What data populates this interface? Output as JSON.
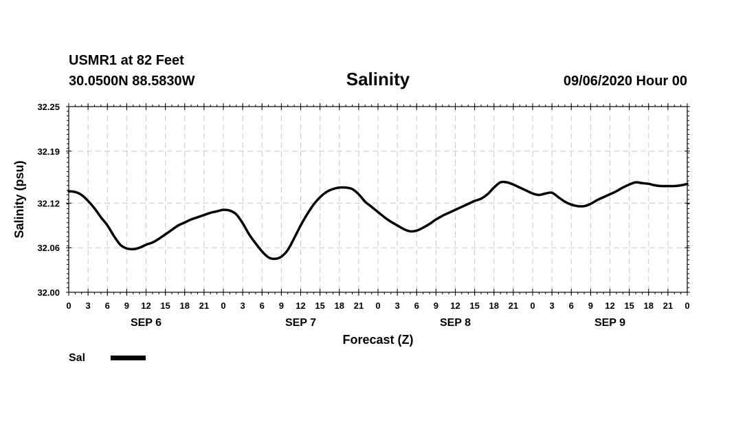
{
  "header": {
    "station": "USMR1 at 82 Feet",
    "coords": "30.0500N 88.5830W",
    "run": "09/06/2020 Hour 00"
  },
  "chart_data": {
    "type": "line",
    "title": "Salinity",
    "xlabel": "Forecast (Z)",
    "ylabel": "Salinity (psu)",
    "ylim": [
      32.0,
      32.25
    ],
    "yticks": [
      "32.00",
      "32.06",
      "32.12",
      "32.19",
      "32.25"
    ],
    "xlim_hours": [
      0,
      96
    ],
    "xtick_labels": [
      "0",
      "3",
      "6",
      "9",
      "12",
      "15",
      "18",
      "21",
      "0",
      "3",
      "6",
      "9",
      "12",
      "15",
      "18",
      "21",
      "0",
      "3",
      "6",
      "9",
      "12",
      "15",
      "18",
      "21",
      "0",
      "3",
      "6",
      "9",
      "12",
      "15",
      "18",
      "21",
      "0"
    ],
    "day_labels": [
      "SEP 6",
      "SEP 7",
      "SEP 8",
      "SEP 9"
    ],
    "grid": true,
    "legend": {
      "position": "bottom-left",
      "label": "Sal"
    },
    "series": [
      {
        "name": "Sal",
        "color": "#000000",
        "x": [
          0,
          1,
          2,
          3,
          4,
          5,
          6,
          7,
          8,
          9,
          10,
          11,
          12,
          13,
          14,
          15,
          16,
          17,
          18,
          19,
          20,
          21,
          22,
          23,
          24,
          25,
          26,
          27,
          28,
          29,
          30,
          31,
          32,
          33,
          34,
          35,
          36,
          37,
          38,
          39,
          40,
          41,
          42,
          43,
          44,
          45,
          46,
          47,
          48,
          49,
          50,
          51,
          52,
          53,
          54,
          55,
          56,
          57,
          58,
          59,
          60,
          61,
          62,
          63,
          64,
          65,
          66,
          67,
          68,
          69,
          70,
          71,
          72,
          73,
          74,
          75,
          76,
          77,
          78,
          79,
          80,
          81,
          82,
          83,
          84,
          85,
          86,
          87,
          88,
          89,
          90,
          91,
          92,
          93,
          94,
          95,
          96
        ],
        "values": [
          32.136,
          32.135,
          32.131,
          32.123,
          32.113,
          32.101,
          32.09,
          32.076,
          32.064,
          32.059,
          32.058,
          32.06,
          32.064,
          32.067,
          32.072,
          32.078,
          32.084,
          32.09,
          32.094,
          32.098,
          32.101,
          32.104,
          32.107,
          32.109,
          32.111,
          32.11,
          32.105,
          32.093,
          32.078,
          32.066,
          32.055,
          32.047,
          32.045,
          32.048,
          32.057,
          32.073,
          32.09,
          32.105,
          32.118,
          32.128,
          32.135,
          32.139,
          32.141,
          32.141,
          32.139,
          32.132,
          32.122,
          32.115,
          32.108,
          32.101,
          32.095,
          32.09,
          32.085,
          32.082,
          32.083,
          32.087,
          32.092,
          32.098,
          32.103,
          32.107,
          32.111,
          32.115,
          32.119,
          32.123,
          32.126,
          32.132,
          32.141,
          32.148,
          32.148,
          32.145,
          32.141,
          32.137,
          32.133,
          32.131,
          32.133,
          32.134,
          32.128,
          32.122,
          32.118,
          32.116,
          32.116,
          32.119,
          32.124,
          32.128,
          32.132,
          32.136,
          32.141,
          32.145,
          32.148,
          32.147,
          32.146,
          32.144,
          32.143,
          32.143,
          32.143,
          32.144,
          32.146
        ]
      }
    ]
  }
}
